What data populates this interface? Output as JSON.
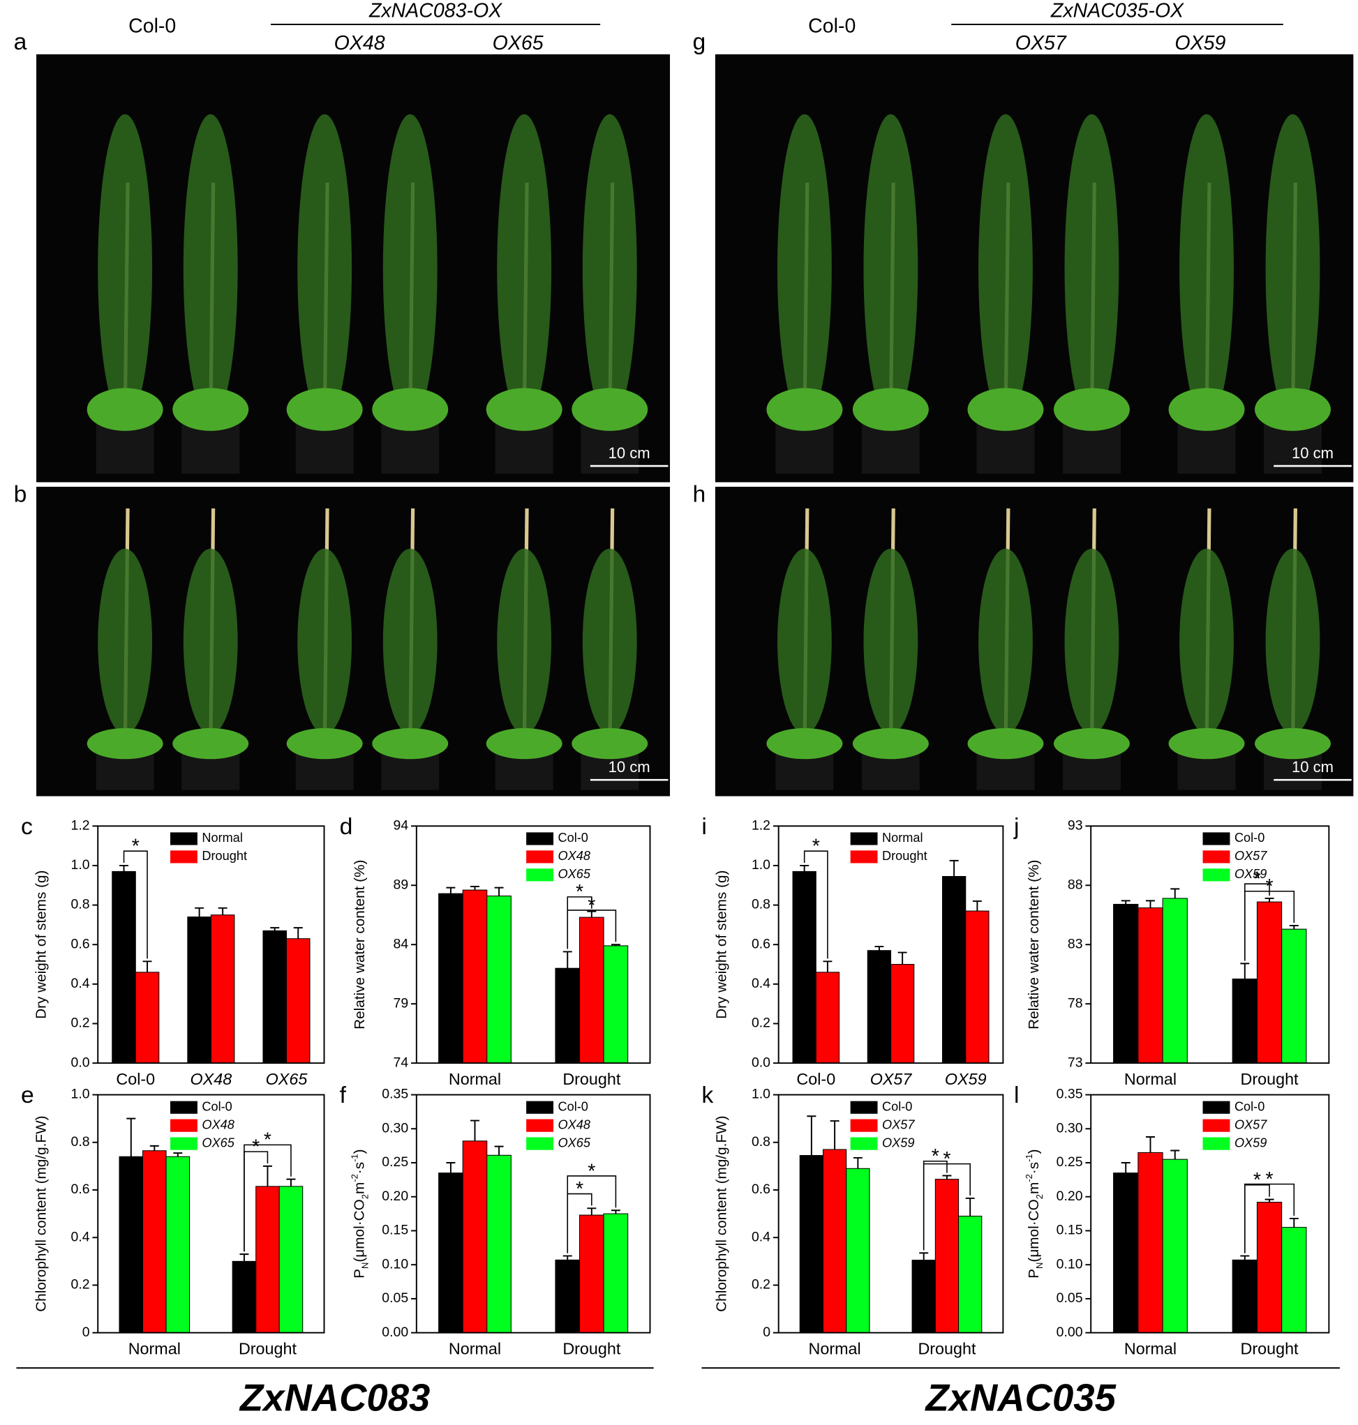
{
  "photos": {
    "left": {
      "group": "Col-0",
      "construct": "ZxNAC083-OX",
      "lines": [
        "OX48",
        "OX65"
      ],
      "panels": [
        "a",
        "b"
      ],
      "scale_bars": [
        "10 cm",
        "10 cm"
      ]
    },
    "right": {
      "group": "Col-0",
      "construct": "ZxNAC035-OX",
      "lines": [
        "OX57",
        "OX59"
      ],
      "panels": [
        "g",
        "h"
      ],
      "scale_bars": [
        "10 cm",
        "10 cm"
      ]
    }
  },
  "chart_data": [
    {
      "panel": "c",
      "type": "bar",
      "y_label": "Dry weight of stems (g)",
      "categories": [
        "Col-0",
        "OX48",
        "OX65"
      ],
      "series": [
        {
          "name": "Normal",
          "color": "#000000",
          "values": [
            0.97,
            0.74,
            0.67
          ],
          "errors": [
            0.03,
            0.045,
            0.015
          ]
        },
        {
          "name": "Drought",
          "color": "#ff0000",
          "values": [
            0.46,
            0.75,
            0.63
          ],
          "errors": [
            0.055,
            0.035,
            0.055
          ]
        }
      ],
      "ylim": [
        0,
        1.2
      ],
      "yticks": [
        {
          "value": 0,
          "label": "0.0"
        },
        0.2,
        0.4,
        0.6,
        0.8,
        {
          "value": 1,
          "label": "1.0"
        },
        1.2
      ],
      "legend": "top",
      "significance": [
        {
          "label": "*",
          "between": [
            [
              0,
              0
            ],
            [
              0,
              1
            ]
          ]
        }
      ]
    },
    {
      "panel": "d",
      "type": "bar",
      "y_label": "Relative water content (%)",
      "categories": [
        "Normal",
        "Drought"
      ],
      "series": [
        {
          "name": "Col-0",
          "color": "#000000",
          "values": [
            88.3,
            82.0
          ],
          "errors": [
            0.5,
            1.4
          ]
        },
        {
          "name": "OX48",
          "color": "#ff0000",
          "values": [
            88.6,
            86.3
          ],
          "errors": [
            0.3,
            0.5
          ]
        },
        {
          "name": "OX65",
          "color": "#00ff1e",
          "values": [
            88.1,
            83.9
          ],
          "errors": [
            0.7,
            0.1
          ]
        }
      ],
      "ylim": [
        74,
        94
      ],
      "yticks": [
        74,
        79,
        84,
        89,
        94
      ],
      "legend": "top-right",
      "significance": [
        {
          "label": "*",
          "between": [
            [
              1,
              0
            ],
            [
              1,
              1
            ]
          ]
        },
        {
          "label": "*",
          "between": [
            [
              1,
              0
            ],
            [
              1,
              2
            ]
          ]
        }
      ]
    },
    {
      "panel": "e",
      "type": "bar",
      "y_label": "Chlorophyll content (mg/g.FW)",
      "categories": [
        "Normal",
        "Drought"
      ],
      "series": [
        {
          "name": "Col-0",
          "color": "#000000",
          "values": [
            0.74,
            0.3
          ],
          "errors": [
            0.16,
            0.03
          ]
        },
        {
          "name": "OX48",
          "color": "#ff0000",
          "values": [
            0.765,
            0.615
          ],
          "errors": [
            0.02,
            0.085
          ]
        },
        {
          "name": "OX65",
          "color": "#00ff1e",
          "values": [
            0.74,
            0.615
          ],
          "errors": [
            0.015,
            0.03
          ]
        }
      ],
      "ylim": [
        0,
        1
      ],
      "yticks": [
        0,
        0.2,
        0.4,
        0.6,
        0.8,
        {
          "value": 1,
          "label": "1.0"
        }
      ],
      "legend": "top",
      "significance": [
        {
          "label": "*",
          "between": [
            [
              1,
              0
            ],
            [
              1,
              1
            ]
          ]
        },
        {
          "label": "*",
          "between": [
            [
              1,
              0
            ],
            [
              1,
              2
            ]
          ]
        }
      ]
    },
    {
      "panel": "f",
      "type": "bar",
      "y_label": [
        "P",
        "N",
        "(μmol·CO",
        "2",
        "m",
        "-2",
        "·s",
        "-1",
        ")"
      ],
      "categories": [
        "Normal",
        "Drought"
      ],
      "series": [
        {
          "name": "Col-0",
          "color": "#000000",
          "values": [
            0.235,
            0.107
          ],
          "errors": [
            0.015,
            0.006
          ]
        },
        {
          "name": "OX48",
          "color": "#ff0000",
          "values": [
            0.282,
            0.173
          ],
          "errors": [
            0.03,
            0.01
          ]
        },
        {
          "name": "OX65",
          "color": "#00ff1e",
          "values": [
            0.261,
            0.175
          ],
          "errors": [
            0.013,
            0.005
          ]
        }
      ],
      "ylim": [
        0,
        0.35
      ],
      "yticks": [
        {
          "value": 0,
          "label": "0.00"
        },
        0.05,
        {
          "value": 0.1,
          "label": "0.10"
        },
        0.15,
        {
          "value": 0.2,
          "label": "0.20"
        },
        0.25,
        {
          "value": 0.3,
          "label": "0.30"
        },
        0.35
      ],
      "legend": "top-right",
      "significance": [
        {
          "label": "*",
          "between": [
            [
              1,
              0
            ],
            [
              1,
              1
            ]
          ]
        },
        {
          "label": "*",
          "between": [
            [
              1,
              0
            ],
            [
              1,
              2
            ]
          ]
        }
      ]
    },
    {
      "panel": "i",
      "type": "bar",
      "y_label": "Dry weight of stems (g)",
      "categories": [
        "Col-0",
        "OX57",
        "OX59"
      ],
      "series": [
        {
          "name": "Normal",
          "color": "#000000",
          "values": [
            0.97,
            0.57,
            0.945
          ],
          "errors": [
            0.03,
            0.02,
            0.08
          ]
        },
        {
          "name": "Drought",
          "color": "#ff0000",
          "values": [
            0.46,
            0.5,
            0.77
          ],
          "errors": [
            0.055,
            0.06,
            0.05
          ]
        }
      ],
      "ylim": [
        0,
        1.2
      ],
      "yticks": [
        {
          "value": 0,
          "label": "0.0"
        },
        0.2,
        0.4,
        0.6,
        0.8,
        {
          "value": 1,
          "label": "1.0"
        },
        1.2
      ],
      "legend": "top",
      "significance": [
        {
          "label": "*",
          "between": [
            [
              0,
              0
            ],
            [
              0,
              1
            ]
          ]
        }
      ]
    },
    {
      "panel": "j",
      "type": "bar",
      "y_label": "Relative water content (%)",
      "categories": [
        "Normal",
        "Drought"
      ],
      "series": [
        {
          "name": "Col-0",
          "color": "#000000",
          "values": [
            86.4,
            80.1
          ],
          "errors": [
            0.3,
            1.3
          ]
        },
        {
          "name": "OX57",
          "color": "#ff0000",
          "values": [
            86.1,
            86.6
          ],
          "errors": [
            0.6,
            0.3
          ]
        },
        {
          "name": "OX59",
          "color": "#00ff1e",
          "values": [
            86.9,
            84.3
          ],
          "errors": [
            0.8,
            0.3
          ]
        }
      ],
      "ylim": [
        73,
        93
      ],
      "yticks": [
        73,
        78,
        83,
        88,
        93
      ],
      "legend": "top-right",
      "significance": [
        {
          "label": "*",
          "between": [
            [
              1,
              0
            ],
            [
              1,
              1
            ]
          ]
        },
        {
          "label": "*",
          "between": [
            [
              1,
              0
            ],
            [
              1,
              2
            ]
          ]
        }
      ]
    },
    {
      "panel": "k",
      "type": "bar",
      "y_label": "Chlorophyll content (mg/g.FW)",
      "categories": [
        "Normal",
        "Drought"
      ],
      "series": [
        {
          "name": "Col-0",
          "color": "#000000",
          "values": [
            0.745,
            0.305
          ],
          "errors": [
            0.165,
            0.03
          ]
        },
        {
          "name": "OX57",
          "color": "#ff0000",
          "values": [
            0.77,
            0.645
          ],
          "errors": [
            0.12,
            0.015
          ]
        },
        {
          "name": "OX59",
          "color": "#00ff1e",
          "values": [
            0.69,
            0.49
          ],
          "errors": [
            0.045,
            0.075
          ]
        }
      ],
      "ylim": [
        0,
        1
      ],
      "yticks": [
        0,
        0.2,
        0.4,
        0.6,
        0.8,
        {
          "value": 1,
          "label": "1.0"
        }
      ],
      "legend": "top",
      "significance": [
        {
          "label": "*",
          "between": [
            [
              1,
              0
            ],
            [
              1,
              1
            ]
          ]
        },
        {
          "label": "*",
          "between": [
            [
              1,
              0
            ],
            [
              1,
              2
            ]
          ]
        }
      ]
    },
    {
      "panel": "l",
      "type": "bar",
      "y_label": [
        "P",
        "N",
        "(μmol·CO",
        "2",
        "m",
        "-2",
        "·s",
        "-1",
        ")"
      ],
      "categories": [
        "Normal",
        "Drought"
      ],
      "series": [
        {
          "name": "Col-0",
          "color": "#000000",
          "values": [
            0.235,
            0.107
          ],
          "errors": [
            0.015,
            0.006
          ]
        },
        {
          "name": "OX57",
          "color": "#ff0000",
          "values": [
            0.265,
            0.192
          ],
          "errors": [
            0.023,
            0.004
          ]
        },
        {
          "name": "OX59",
          "color": "#00ff1e",
          "values": [
            0.255,
            0.155
          ],
          "errors": [
            0.013,
            0.013
          ]
        }
      ],
      "ylim": [
        0,
        0.35
      ],
      "yticks": [
        {
          "value": 0,
          "label": "0.00"
        },
        0.05,
        {
          "value": 0.1,
          "label": "0.10"
        },
        0.15,
        {
          "value": 0.2,
          "label": "0.20"
        },
        0.25,
        {
          "value": 0.3,
          "label": "0.30"
        },
        0.35
      ],
      "legend": "top-right",
      "significance": [
        {
          "label": "*",
          "between": [
            [
              1,
              0
            ],
            [
              1,
              1
            ]
          ]
        },
        {
          "label": "*",
          "between": [
            [
              1,
              0
            ],
            [
              1,
              2
            ]
          ]
        }
      ]
    }
  ],
  "footer": {
    "left": "ZxNAC083",
    "right": "ZxNAC035"
  }
}
